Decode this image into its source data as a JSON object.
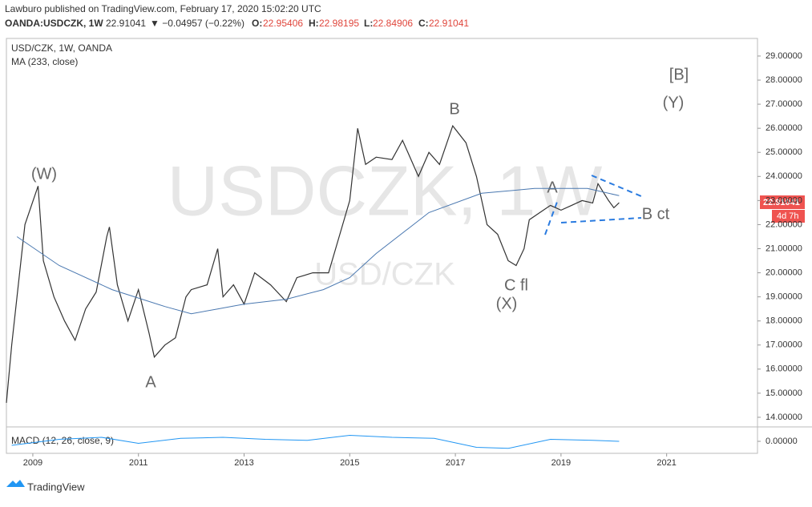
{
  "header": {
    "publisher": "Lawburo published on TradingView.com, February 17, 2020 15:02:20 UTC",
    "symbol": "OANDA:USDCZK, 1W",
    "last": "22.91041",
    "change": "▼ −0.04957 (−0.22%)",
    "o_label": "O:",
    "o": "22.95406",
    "h_label": "H:",
    "h": "22.98195",
    "l_label": "L:",
    "l": "22.84906",
    "c_label": "C:",
    "c": "22.91041"
  },
  "footer": {
    "brand": "TradingView"
  },
  "chart_data": {
    "type": "line",
    "legend_title": "USD/CZK, 1W, OANDA",
    "watermark": "USDCZK, 1W",
    "watermark_sub": "USD/CZK",
    "price_tag": "22.91041",
    "countdown": "4d 7h",
    "x": [
      2008.5,
      2008.6,
      2008.75,
      2008.85,
      2009.1,
      2009.2,
      2009.4,
      2009.6,
      2009.8,
      2010.0,
      2010.2,
      2010.4,
      2010.45,
      2010.6,
      2010.8,
      2011.0,
      2011.2,
      2011.3,
      2011.5,
      2011.7,
      2011.9,
      2012.0,
      2012.3,
      2012.5,
      2012.6,
      2012.8,
      2013.0,
      2013.2,
      2013.5,
      2013.8,
      2014.0,
      2014.3,
      2014.6,
      2014.8,
      2015.0,
      2015.15,
      2015.3,
      2015.5,
      2015.8,
      2016.0,
      2016.3,
      2016.5,
      2016.7,
      2016.95,
      2017.2,
      2017.4,
      2017.6,
      2017.8,
      2018.0,
      2018.15,
      2018.3,
      2018.4,
      2018.6,
      2018.8,
      2019.0,
      2019.2,
      2019.4,
      2019.6,
      2019.7,
      2019.9,
      2020.0,
      2020.1
    ],
    "series": [
      {
        "name": "USD/CZK",
        "color": "#333333",
        "values": [
          14.6,
          17,
          20,
          22,
          23.6,
          20.5,
          19,
          18,
          17.2,
          18.5,
          19.2,
          21.5,
          21.9,
          19.5,
          18,
          19.3,
          17.5,
          16.5,
          17,
          17.3,
          19,
          19.3,
          19.5,
          21,
          19,
          19.5,
          18.7,
          20,
          19.5,
          18.8,
          19.8,
          20,
          20,
          21.5,
          23,
          26,
          24.5,
          24.8,
          24.7,
          25.5,
          24,
          25,
          24.5,
          26.1,
          25.4,
          24,
          22,
          21.6,
          20.5,
          20.3,
          21,
          22.2,
          22.5,
          22.8,
          22.6,
          22.8,
          23,
          22.9,
          23.7,
          23,
          22.7,
          22.91
        ]
      }
    ],
    "ma": {
      "name": "MA (233, close)",
      "color": "#4a78b0",
      "x": [
        2008.7,
        2009.5,
        2010.5,
        2011.5,
        2012.0,
        2012.5,
        2013.0,
        2013.8,
        2014.5,
        2015.0,
        2015.5,
        2016.5,
        2017.5,
        2018.5,
        2019.5,
        2020.1
      ],
      "values": [
        21.5,
        20.3,
        19.3,
        18.6,
        18.3,
        18.5,
        18.7,
        18.9,
        19.3,
        19.8,
        20.8,
        22.5,
        23.3,
        23.5,
        23.5,
        23.2
      ]
    },
    "macd": {
      "name": "MACD (12, 26, close, 9)",
      "color": "#2196f3",
      "x": [
        2008.6,
        2009.5,
        2010.3,
        2011.0,
        2011.8,
        2012.6,
        2013.4,
        2014.2,
        2015.0,
        2015.8,
        2016.6,
        2017.4,
        2018.0,
        2018.8,
        2019.6,
        2020.1
      ],
      "values": [
        -0.2,
        0.1,
        0.2,
        -0.1,
        0.15,
        0.2,
        0.1,
        0.05,
        0.3,
        0.2,
        0.15,
        -0.3,
        -0.35,
        0.1,
        0.05,
        0.0
      ],
      "ylim": [
        -0.6,
        0.6
      ],
      "yticks": [
        {
          "value": 0,
          "label": "0.00000"
        }
      ]
    },
    "annotations": [
      "(W)",
      "A",
      "B",
      "C fl",
      "(X)",
      "A",
      "B ct",
      "[B]",
      "(Y)"
    ],
    "xlim": [
      2008.5,
      2022.72
    ],
    "xticks": [
      2009,
      2011,
      2013,
      2015,
      2017,
      2019,
      2021
    ],
    "ylim": [
      13.6,
      29.73
    ],
    "yticks": [
      {
        "value": 14,
        "label": "14.00000"
      },
      {
        "value": 15,
        "label": "15.00000"
      },
      {
        "value": 16,
        "label": "16.00000"
      },
      {
        "value": 17,
        "label": "17.00000"
      },
      {
        "value": 18,
        "label": "18.00000"
      },
      {
        "value": 19,
        "label": "19.00000"
      },
      {
        "value": 20,
        "label": "20.00000"
      },
      {
        "value": 21,
        "label": "21.00000"
      },
      {
        "value": 22,
        "label": "22.00000"
      },
      {
        "value": 23,
        "label": "23.00000"
      },
      {
        "value": 24,
        "label": "24.00000"
      },
      {
        "value": 25,
        "label": "25.00000"
      },
      {
        "value": 26,
        "label": "26.00000"
      },
      {
        "value": 27,
        "label": "27.00000"
      },
      {
        "value": 28,
        "label": "28.00000"
      },
      {
        "value": 29,
        "label": "29.00000"
      }
    ]
  }
}
